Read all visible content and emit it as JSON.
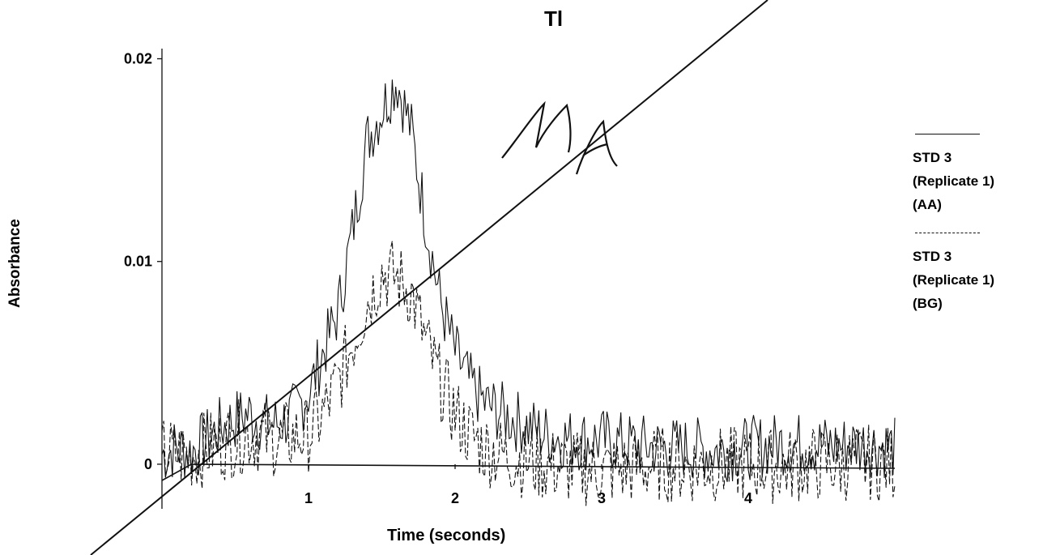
{
  "chart_data": {
    "type": "line",
    "title": "Tl",
    "xlabel": "Time (seconds)",
    "ylabel": "Absorbance",
    "xlim": [
      0,
      5
    ],
    "ylim": [
      -0.0022,
      0.0205
    ],
    "x_ticks": [
      {
        "value": 1,
        "label": "1"
      },
      {
        "value": 2,
        "label": "2"
      },
      {
        "value": 3,
        "label": "3"
      },
      {
        "value": 4,
        "label": "4"
      }
    ],
    "y_ticks": [
      {
        "value": 0,
        "label": "0"
      },
      {
        "value": 0.01,
        "label": "0.01"
      },
      {
        "value": 0.02,
        "label": "0.02"
      }
    ],
    "legend_position": "right",
    "series": [
      {
        "name": "STD 3 (Replicate 1) (AA)",
        "legend_lines": [
          "STD 3",
          "(Replicate 1)",
          "(AA)"
        ],
        "style": "solid",
        "x": [
          0,
          0.1,
          0.2,
          0.3,
          0.4,
          0.5,
          0.6,
          0.7,
          0.8,
          0.9,
          1.0,
          1.1,
          1.2,
          1.3,
          1.4,
          1.5,
          1.6,
          1.7,
          1.8,
          1.9,
          2.0,
          2.1,
          2.2,
          2.4,
          2.6,
          2.8,
          3.0,
          3.2,
          3.4,
          3.6,
          3.8,
          4.0,
          4.2,
          4.4,
          4.6,
          4.8,
          5.0
        ],
        "values": [
          0.0005,
          0.0008,
          0.0006,
          0.0012,
          0.0018,
          0.0022,
          0.0025,
          0.002,
          0.002,
          0.0025,
          0.0035,
          0.0055,
          0.0075,
          0.0115,
          0.016,
          0.0175,
          0.019,
          0.0165,
          0.012,
          0.008,
          0.0055,
          0.004,
          0.003,
          0.0022,
          0.0015,
          0.0012,
          0.0012,
          0.001,
          0.0008,
          0.0008,
          0.0007,
          0.0008,
          0.001,
          0.001,
          0.0009,
          0.001,
          0.0008
        ]
      },
      {
        "name": "STD 3 (Replicate 1) (BG)",
        "legend_lines": [
          "STD 3",
          "(Replicate 1)",
          "(BG)"
        ],
        "style": "dashed",
        "x": [
          0,
          0.2,
          0.4,
          0.6,
          0.8,
          1.0,
          1.1,
          1.2,
          1.3,
          1.4,
          1.5,
          1.6,
          1.7,
          1.8,
          1.9,
          2.0,
          2.1,
          2.2,
          2.4,
          2.6,
          2.8,
          3.0,
          3.2,
          3.4,
          3.6,
          3.8,
          4.0,
          4.2,
          4.4,
          4.6,
          4.8,
          5.0
        ],
        "values": [
          0.0005,
          0.0005,
          0.001,
          0.0015,
          0.0012,
          0.0015,
          0.0025,
          0.004,
          0.006,
          0.008,
          0.0095,
          0.0092,
          0.0085,
          0.006,
          0.004,
          0.0025,
          0.0015,
          0.0008,
          0.0003,
          0.0,
          -0.0002,
          -0.0003,
          -0.0002,
          0.0,
          -0.0001,
          0.0,
          0.0,
          -0.0001,
          0.0,
          0.0,
          0.0001,
          0.0
        ]
      },
      {
        "name": "",
        "style": "solid",
        "x": [
          0.0,
          0.2,
          5.0
        ],
        "values": [
          -0.0008,
          0.0,
          -0.0002
        ]
      }
    ]
  }
}
